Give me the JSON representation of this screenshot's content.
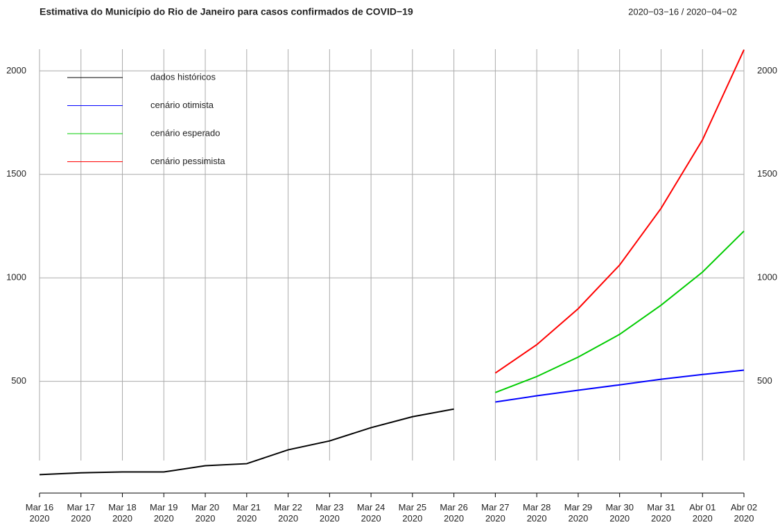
{
  "chart_data": {
    "type": "line",
    "title": "Estimativa do Município do Rio de Janeiro para casos confirmados de COVID−19",
    "subtitle": "2020−03−16 / 2020−04−02",
    "categories": [
      [
        "Mar 16",
        "2020"
      ],
      [
        "Mar 17",
        "2020"
      ],
      [
        "Mar 18",
        "2020"
      ],
      [
        "Mar 19",
        "2020"
      ],
      [
        "Mar 20",
        "2020"
      ],
      [
        "Mar 21",
        "2020"
      ],
      [
        "Mar 22",
        "2020"
      ],
      [
        "Mar 23",
        "2020"
      ],
      [
        "Mar 24",
        "2020"
      ],
      [
        "Mar 25",
        "2020"
      ],
      [
        "Mar 26",
        "2020"
      ],
      [
        "Mar 27",
        "2020"
      ],
      [
        "Mar 28",
        "2020"
      ],
      [
        "Mar 29",
        "2020"
      ],
      [
        "Mar 30",
        "2020"
      ],
      [
        "Mar 31",
        "2020"
      ],
      [
        "Abr 01",
        "2020"
      ],
      [
        "Abr 02",
        "2020"
      ]
    ],
    "series": [
      {
        "name": "dados históricos",
        "color": "#000000",
        "values": [
          49,
          58,
          62,
          62,
          92,
          102,
          169,
          212,
          276,
          329,
          366,
          null,
          null,
          null,
          null,
          null,
          null,
          null
        ]
      },
      {
        "name": "cenário otimista",
        "color": "#0000ff",
        "values": [
          null,
          null,
          null,
          null,
          null,
          null,
          null,
          null,
          null,
          null,
          null,
          400,
          430,
          457,
          483,
          510,
          533,
          554
        ]
      },
      {
        "name": "cenário esperado",
        "color": "#00cc00",
        "values": [
          null,
          null,
          null,
          null,
          null,
          null,
          null,
          null,
          null,
          null,
          null,
          446,
          523,
          617,
          727,
          868,
          1028,
          1226
        ]
      },
      {
        "name": "cenário pessimista",
        "color": "#ff0000",
        "values": [
          null,
          null,
          null,
          null,
          null,
          null,
          null,
          null,
          null,
          null,
          null,
          540,
          677,
          851,
          1062,
          1336,
          1667,
          2102
        ]
      }
    ],
    "ylim": [
      -40,
      2105
    ],
    "yticks": [
      500,
      1000,
      1500,
      2000
    ],
    "grid": true,
    "legend": "top-left"
  }
}
